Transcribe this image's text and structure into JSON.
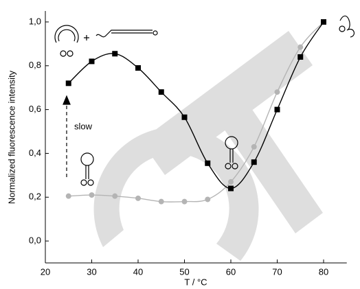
{
  "chart_data": {
    "type": "line",
    "x_label": "T / °C",
    "y_label": "Normalized fluorescence intensity",
    "annotation": "slow",
    "x": [
      25,
      30,
      35,
      40,
      45,
      50,
      55,
      60,
      65,
      70,
      75,
      80
    ],
    "series": [
      {
        "color": "#000000",
        "marker": "square",
        "values": [
          0.72,
          0.82,
          0.855,
          0.79,
          0.68,
          0.565,
          0.355,
          0.24,
          0.36,
          0.6,
          0.84,
          1.0
        ]
      },
      {
        "color": "#b4b4b4",
        "marker": "circle",
        "values": [
          0.205,
          0.21,
          0.205,
          0.195,
          0.18,
          0.18,
          0.19,
          0.27,
          0.43,
          0.68,
          0.885,
          1.0
        ]
      }
    ],
    "xlim": [
      20,
      85
    ],
    "xticks": [
      20,
      30,
      40,
      50,
      60,
      70,
      80
    ],
    "ylim": [
      -0.1,
      1.05
    ],
    "yticks": [
      {
        "value": 0.0,
        "label": "0,0"
      },
      {
        "value": 0.2,
        "label": "0,2"
      },
      {
        "value": 0.4,
        "label": "0,4"
      },
      {
        "value": 0.6,
        "label": "0,6"
      },
      {
        "value": 0.8,
        "label": "0,8"
      },
      {
        "value": 1.0,
        "label": "1,0"
      }
    ]
  }
}
